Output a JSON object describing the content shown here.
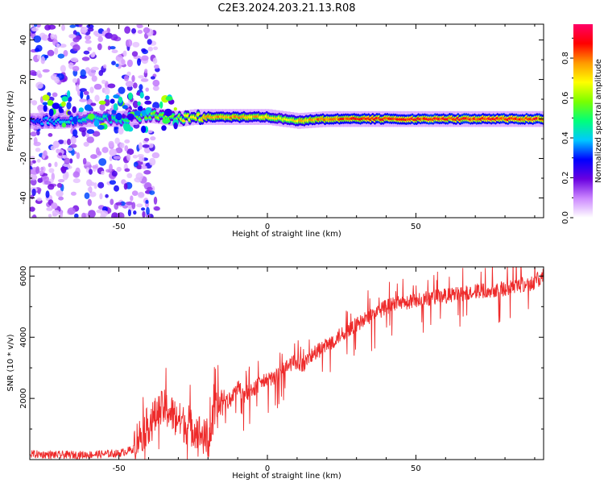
{
  "figure": {
    "title": "C2E3.2024.203.21.13.R08"
  },
  "chart_data": [
    {
      "type": "heatmap",
      "xlabel": "Height of straight line (km)",
      "ylabel": "Frequency (Hz)",
      "xlim": [
        -80,
        93
      ],
      "ylim": [
        -50,
        48
      ],
      "xticks": [
        -50,
        0,
        50
      ],
      "yticks": [
        -40,
        -20,
        0,
        20,
        40
      ],
      "colorbar": {
        "label": "Normalized spectral amplitude",
        "range": [
          0,
          0.97
        ],
        "ticks": [
          0.0,
          0.2,
          0.4,
          0.6,
          0.8
        ],
        "colormap": [
          "#ffffff",
          "#cc88ff",
          "#6a00e0",
          "#0000ff",
          "#00c8ff",
          "#00ff7a",
          "#7aff00",
          "#ffff00",
          "#ff9900",
          "#ff0000",
          "#ff0066"
        ]
      },
      "ridge": {
        "description": "spectral energy concentrated near 0 Hz across heights; diffuse scatter below about -45 km",
        "x": [
          -80,
          -70,
          -60,
          -50,
          -45,
          -40,
          -35,
          -30,
          -25,
          -20,
          -10,
          0,
          5,
          10,
          20,
          40,
          60,
          80,
          93
        ],
        "center_hz": [
          -1,
          -1,
          0,
          0,
          1,
          2,
          1,
          0,
          1,
          1,
          1,
          1,
          0,
          -1,
          0,
          0,
          0,
          0,
          0
        ],
        "peak_amplitude": [
          0.35,
          0.45,
          0.5,
          0.55,
          0.6,
          0.62,
          0.65,
          0.7,
          0.8,
          0.85,
          0.85,
          0.8,
          0.75,
          0.8,
          0.9,
          0.95,
          0.95,
          0.95,
          0.95
        ]
      },
      "scatter_region": {
        "x_range": [
          -80,
          -45
        ],
        "y_range": [
          -50,
          48
        ],
        "amplitude_range": [
          0.05,
          0.35
        ]
      }
    },
    {
      "type": "line",
      "xlabel": "Height of straight line (km)",
      "ylabel": "SNR (10 * v/v)",
      "xlim": [
        -80,
        93
      ],
      "ylim": [
        0,
        6300
      ],
      "xticks": [
        -50,
        0,
        50
      ],
      "yticks": [
        2000,
        4000,
        6000
      ],
      "series": [
        {
          "color": "#ee2a2a",
          "x": [
            -80,
            -70,
            -60,
            -50,
            -45,
            -42,
            -38,
            -35,
            -32,
            -30,
            -27,
            -24,
            -22,
            -20,
            -18,
            -15,
            -12,
            -10,
            -8,
            -5,
            -2,
            0,
            3,
            6,
            9,
            12,
            15,
            18,
            21,
            25,
            30,
            35,
            40,
            45,
            50,
            55,
            60,
            65,
            70,
            75,
            80,
            85,
            90,
            93
          ],
          "values": [
            180,
            150,
            160,
            200,
            350,
            700,
            1200,
            1500,
            1300,
            1100,
            900,
            800,
            600,
            400,
            1200,
            1800,
            2000,
            2400,
            2100,
            2300,
            2500,
            2600,
            2700,
            3000,
            3200,
            3100,
            3400,
            3600,
            3800,
            4100,
            4400,
            4700,
            5000,
            5100,
            5200,
            5300,
            5350,
            5400,
            5500,
            5550,
            5600,
            5700,
            5800,
            6000
          ]
        }
      ]
    }
  ]
}
